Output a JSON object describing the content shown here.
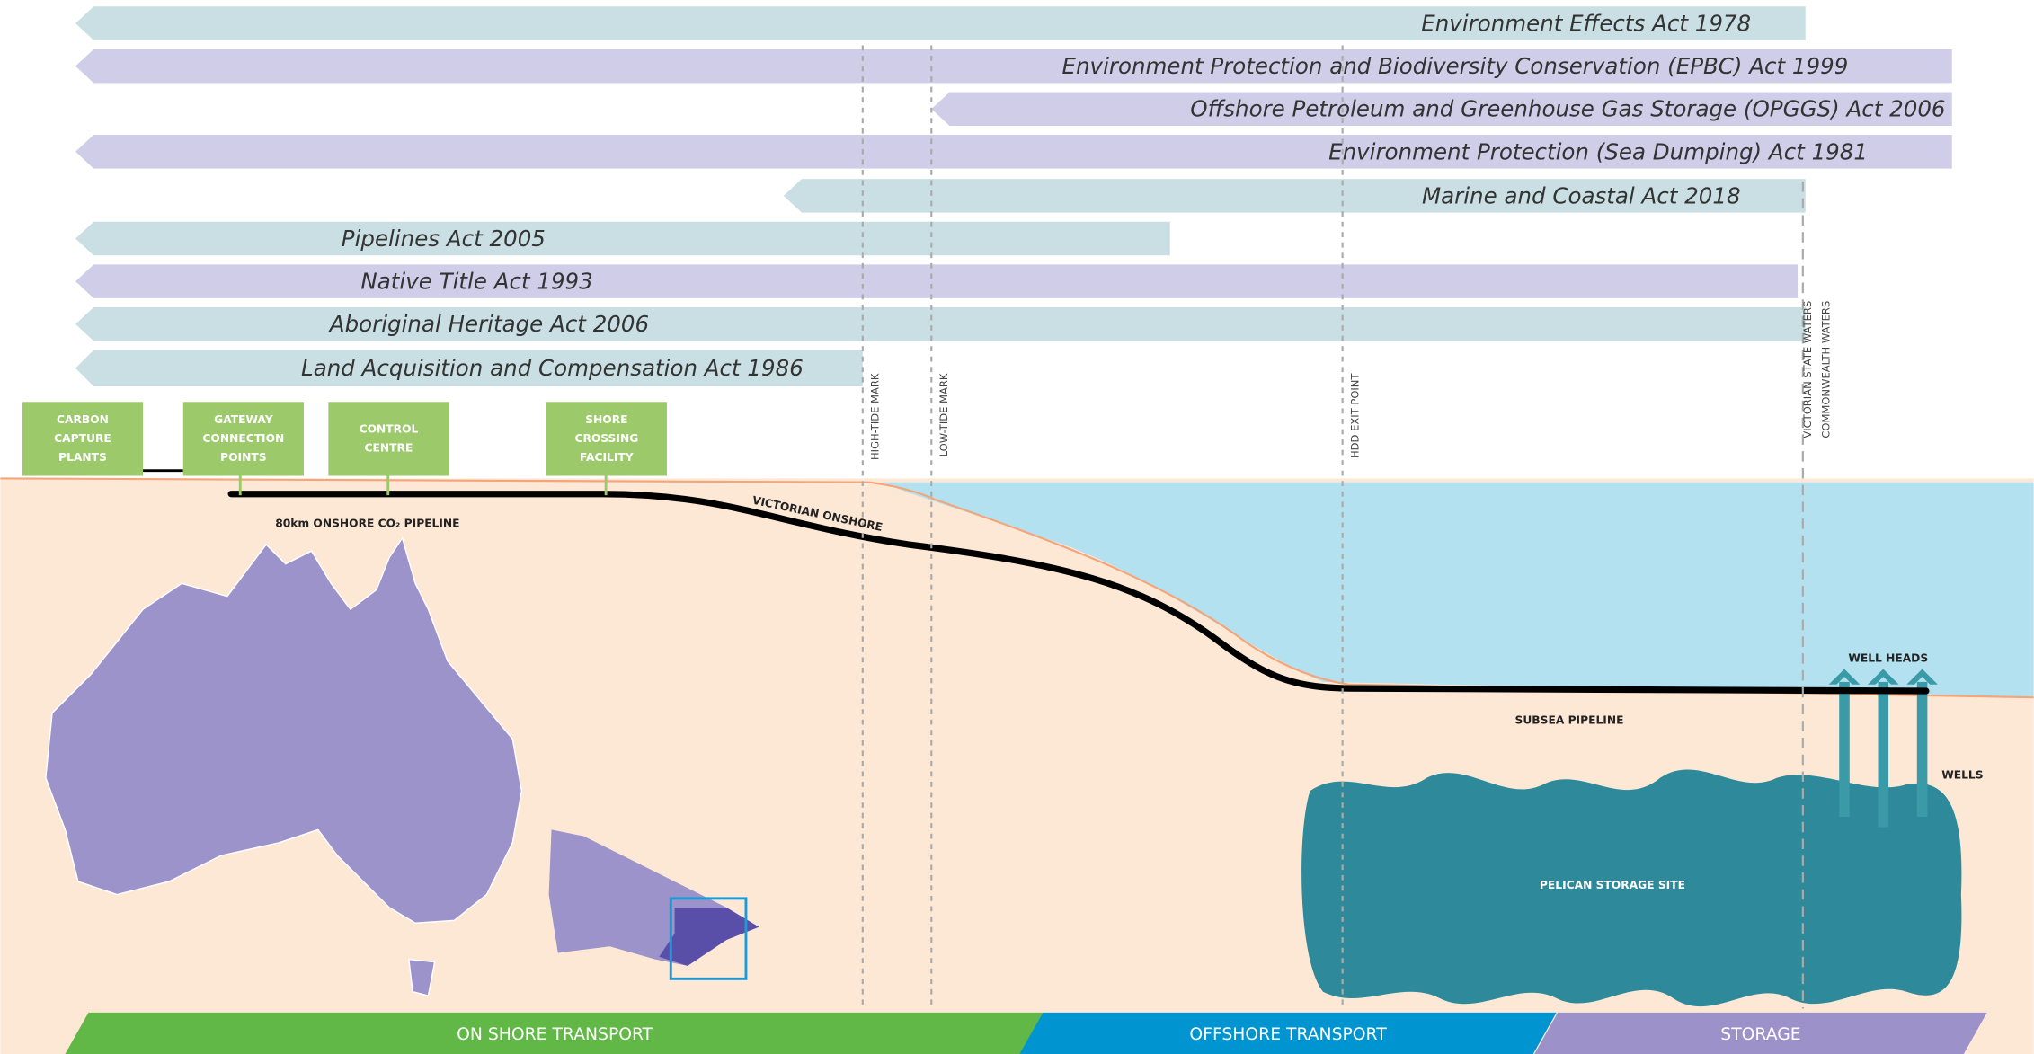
{
  "acts": [
    "Environment Effects Act 1978",
    "Environment Protection and Biodiversity Conservation (EPBC) Act 1999",
    "Offshore Petroleum and Greenhouse Gas Storage (OPGGS) Act 2006",
    "Environment Protection (Sea Dumping) Act 1981",
    "Marine and Coastal Act 2018",
    "Pipelines Act 2005",
    "Native Title Act 1993",
    "Aboriginal Heritage Act 2006",
    "Land Acquisition and Compensation Act 1986"
  ],
  "markers": [
    "HIGH-TIDE MARK",
    "LOW-TIDE MARK",
    "HDD EXIT POINT",
    "VICTORIAN STATE WATERS",
    "COMMONWEALTH WATERS"
  ],
  "boxes": [
    {
      "lines": [
        "CARBON",
        "CAPTURE",
        "PLANTS"
      ]
    },
    {
      "lines": [
        "GATEWAY",
        "CONNECTION",
        "POINTS"
      ]
    },
    {
      "lines": [
        "CONTROL",
        "CENTRE"
      ]
    },
    {
      "lines": [
        "SHORE",
        "CROSSING",
        "FACILITY"
      ]
    }
  ],
  "labels": {
    "onshore_pipeline": "80km ONSHORE CO₂ PIPELINE",
    "victorian_onshore": "VICTORIAN ONSHORE",
    "subsea_pipeline": "SUBSEA PIPELINE",
    "well_heads": "WELL HEADS",
    "wells": "WELLS",
    "storage_site": "PELICAN STORAGE SITE"
  },
  "phases": [
    "ON SHORE TRANSPORT",
    "OFFSHORE TRANSPORT",
    "STORAGE"
  ]
}
